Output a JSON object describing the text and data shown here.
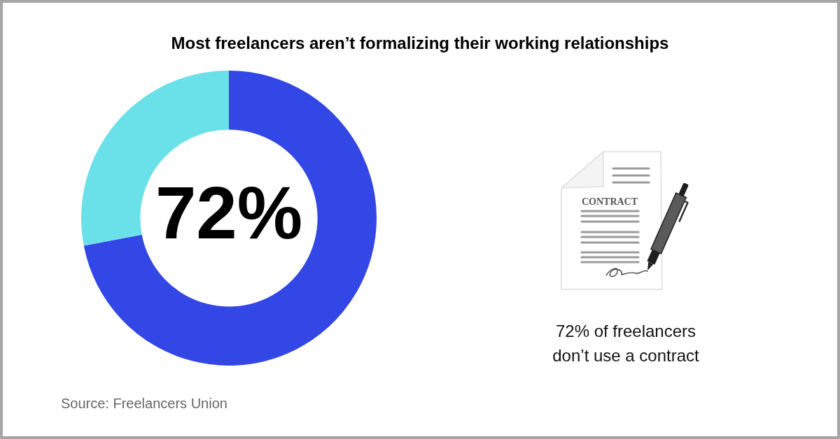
{
  "chart_data": {
    "type": "donut",
    "title": "Most freelancers aren’t formalizing their working relationships",
    "categories": [
      null,
      null
    ],
    "values": [
      72,
      28
    ],
    "colors": [
      "#3346e6",
      "#6ae0e8"
    ],
    "value_labels": [
      "72%",
      null
    ],
    "annotations": [
      "72% of freelancers don’t use a contract",
      "Source: Freelancers Union",
      "CONTRACT"
    ]
  }
}
